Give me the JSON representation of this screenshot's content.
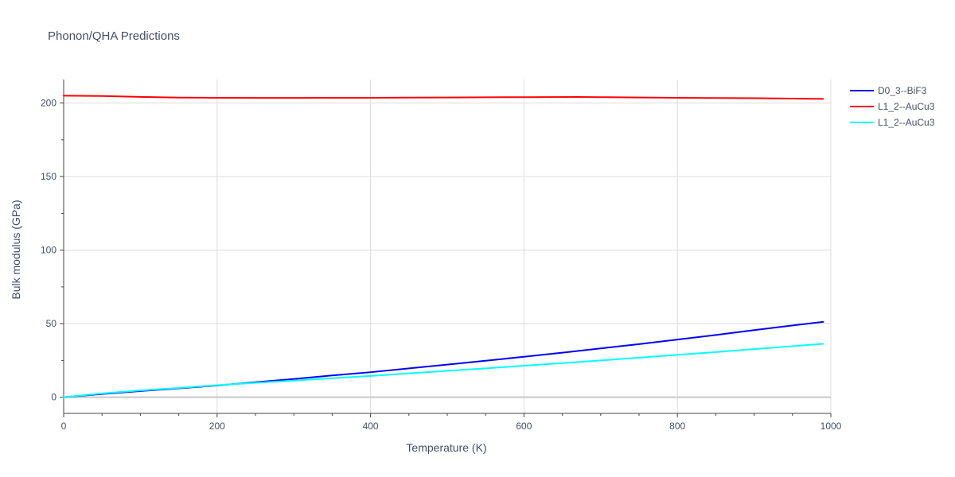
{
  "chart_data": {
    "type": "line",
    "title": "Phonon/QHA Predictions",
    "xlabel": "Temperature (K)",
    "ylabel": "Bulk modulus (GPa)",
    "xlim": [
      0,
      1000
    ],
    "ylim": [
      -11,
      216
    ],
    "xticks": [
      0,
      200,
      400,
      600,
      800,
      1000
    ],
    "yticks": [
      0,
      50,
      100,
      150,
      200
    ],
    "grid": true,
    "legend_position": "top-right",
    "series": [
      {
        "name": "D0_3--BiF3",
        "color": "#0000ff",
        "x": [
          0,
          50,
          100,
          150,
          200,
          250,
          300,
          350,
          400,
          450,
          500,
          550,
          600,
          650,
          700,
          750,
          800,
          850,
          900,
          950,
          990
        ],
        "y": [
          0,
          2.2,
          4.2,
          6.0,
          8.0,
          10.2,
          12.4,
          14.8,
          17.0,
          19.6,
          22.2,
          24.8,
          27.5,
          30.3,
          33.2,
          36.1,
          39.2,
          42.3,
          45.6,
          48.8,
          51.2
        ]
      },
      {
        "name": "L1_2--AuCu3",
        "color": "#ff0000",
        "x": [
          0,
          50,
          100,
          150,
          200,
          250,
          300,
          350,
          400,
          450,
          500,
          550,
          600,
          670,
          700,
          750,
          800,
          850,
          900,
          950,
          990
        ],
        "y": [
          205.0,
          204.8,
          204.2,
          203.7,
          203.6,
          203.5,
          203.5,
          203.6,
          203.6,
          203.7,
          203.8,
          203.9,
          204.0,
          204.1,
          204.0,
          203.8,
          203.6,
          203.4,
          203.3,
          203.0,
          202.8
        ]
      },
      {
        "name": "L1_2--AuCu3",
        "color": "#00ffff",
        "x": [
          0,
          50,
          100,
          150,
          200,
          250,
          300,
          350,
          400,
          450,
          500,
          550,
          600,
          650,
          700,
          750,
          800,
          850,
          900,
          950,
          990
        ],
        "y": [
          0,
          2.6,
          4.6,
          6.3,
          8.2,
          9.8,
          11.3,
          12.9,
          14.5,
          16.2,
          17.9,
          19.6,
          21.4,
          23.2,
          25.0,
          26.9,
          28.8,
          30.7,
          32.7,
          34.7,
          36.3
        ]
      }
    ]
  }
}
